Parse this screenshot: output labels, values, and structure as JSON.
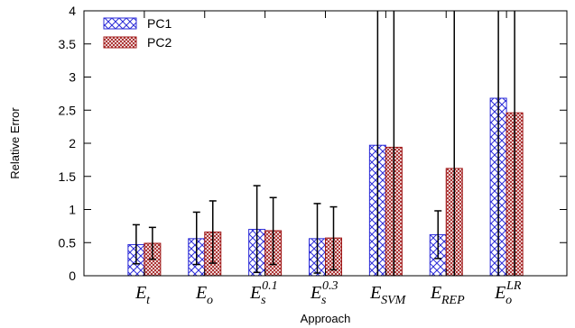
{
  "chart_data": {
    "type": "bar",
    "title": "",
    "xlabel": "Approach",
    "ylabel": "Relative Error",
    "ylim": [
      0,
      4
    ],
    "yticks": [
      "0",
      "0.5",
      "1",
      "1.5",
      "2",
      "2.5",
      "3",
      "3.5",
      "4"
    ],
    "grid": false,
    "legend_position": "top-left",
    "categories": [
      {
        "base": "E",
        "sub": "t",
        "sup": ""
      },
      {
        "base": "E",
        "sub": "o",
        "sup": ""
      },
      {
        "base": "E",
        "sub": "s",
        "sup": "0.1"
      },
      {
        "base": "E",
        "sub": "s",
        "sup": "0.3"
      },
      {
        "base": "E",
        "sub": "SVM",
        "sup": ""
      },
      {
        "base": "E",
        "sub": "REP",
        "sup": ""
      },
      {
        "base": "E",
        "sub": "o",
        "sup": "LR"
      }
    ],
    "series": [
      {
        "name": "PC1",
        "color": "#2b2bd8",
        "pattern": "diagonal-crosshatch",
        "values": [
          0.47,
          0.56,
          0.7,
          0.56,
          1.97,
          0.62,
          2.68
        ],
        "error_low": [
          0.18,
          0.17,
          0.05,
          0.04,
          0.0,
          0.26,
          0.0
        ],
        "error_high": [
          0.77,
          0.96,
          1.36,
          1.09,
          4.0,
          0.98,
          4.0
        ]
      },
      {
        "name": "PC2",
        "color": "#a01818",
        "pattern": "dense-crosshatch",
        "values": [
          0.49,
          0.66,
          0.68,
          0.57,
          1.94,
          1.62,
          2.46
        ],
        "error_low": [
          0.25,
          0.19,
          0.17,
          0.09,
          0.0,
          0.0,
          0.0
        ],
        "error_high": [
          0.73,
          1.13,
          1.18,
          1.04,
          4.0,
          4.0,
          4.0
        ]
      }
    ]
  }
}
